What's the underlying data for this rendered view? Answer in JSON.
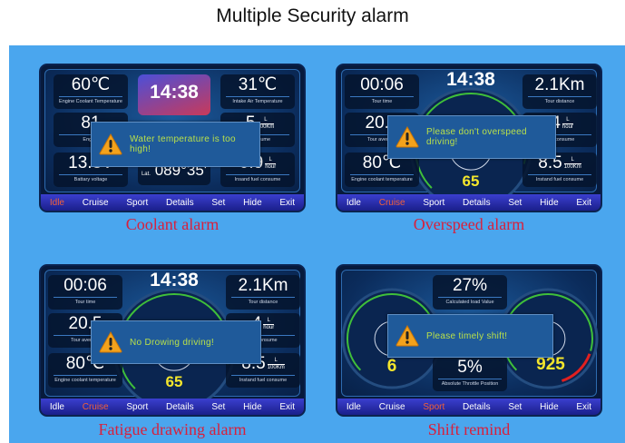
{
  "title": "Multiple Security alarm",
  "menu": [
    "Idle",
    "Cruise",
    "Sport",
    "Details",
    "Set",
    "Hide",
    "Exit"
  ],
  "panels": [
    {
      "caption": "Coolant alarm",
      "active_menu": "Idle",
      "clock": "14:38",
      "lat": "089°35'",
      "lat_prefix": "Lat.",
      "tiles": [
        {
          "value": "60℃",
          "label": "Engine Coolant Temperature"
        },
        {
          "value": "81",
          "label": "Engine"
        },
        {
          "value": "13.8V",
          "label": "Battary voltage"
        },
        {
          "value": "31℃",
          "label": "Intake Air Temperature"
        },
        {
          "value": ".5",
          "unit_top": "L",
          "unit_bottom": "100Km",
          "label": "el consume"
        },
        {
          "value": "0.9",
          "unit_top": "L",
          "unit_bottom": "hour",
          "label": "Insand fuel consume"
        }
      ],
      "alert": "Water temperature is too high!"
    },
    {
      "caption": "Overspeed alarm",
      "active_menu": "Cruise",
      "clock": "14:38",
      "speed": "65",
      "tiles": [
        {
          "value": "00:06",
          "label": "Tour time"
        },
        {
          "value": "20.5",
          "label": "Tour average"
        },
        {
          "value": "80℃",
          "label": "Engine coolant temperature"
        },
        {
          "value": "2.1Km",
          "label": "Tour distance"
        },
        {
          "value": ".4",
          "unit_top": "L",
          "unit_bottom": "hour",
          "label": "fuel consume"
        },
        {
          "value": "8.5",
          "unit_top": "L",
          "unit_bottom": "100Km",
          "label": "Instand fuel consume"
        }
      ],
      "alert": "Please don't overspeed driving!"
    },
    {
      "caption": "Fatigue drawing alarm",
      "active_menu": "Cruise",
      "clock": "14:38",
      "speed": "65",
      "tiles": [
        {
          "value": "00:06",
          "label": "Tour time"
        },
        {
          "value": "20.5",
          "label": "Tour average"
        },
        {
          "value": "80℃",
          "label": "Engine coolant temperature"
        },
        {
          "value": "2.1Km",
          "label": "Tour distance"
        },
        {
          "value": "4",
          "unit_top": "L",
          "unit_bottom": "hour",
          "label": "uel consume"
        },
        {
          "value": "8.5",
          "unit_top": "L",
          "unit_bottom": "100Km",
          "label": "Instand fuel consume"
        }
      ],
      "alert": "No Drowing driving!"
    },
    {
      "caption": "Shift remind",
      "active_menu": "Sport",
      "gear": "6",
      "rpm": "925",
      "tiles": [
        {
          "value": "27%",
          "label": "Calculated load Value"
        },
        {
          "value": "5%",
          "label": "Absolute Throttle Position"
        }
      ],
      "alert": "Please timely shift!"
    }
  ],
  "colors": {
    "background": "#4aa6ee",
    "alert_text": "#b9e04a",
    "caption": "#d8203c",
    "active_menu": "#f0603a",
    "speed": "#f4e62c"
  }
}
